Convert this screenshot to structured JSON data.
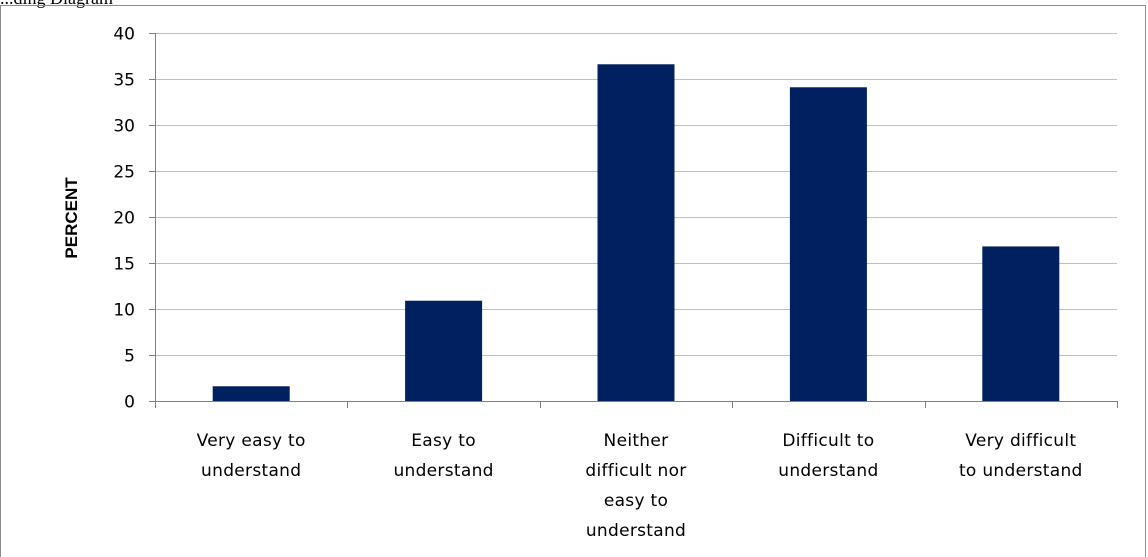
{
  "caption": "...ding Diagram",
  "chart_data": {
    "type": "bar",
    "title": "",
    "xlabel": "",
    "ylabel": "PERCENT",
    "ylim": [
      0,
      40
    ],
    "yticks": [
      0,
      5,
      10,
      15,
      20,
      25,
      30,
      35,
      40
    ],
    "grid": true,
    "legend": "none",
    "categories": [
      [
        "Very easy to",
        "understand"
      ],
      [
        "Easy to",
        "understand"
      ],
      [
        "Neither",
        "difficult nor",
        "easy to",
        "understand"
      ],
      [
        "Difficult to",
        "understand"
      ],
      [
        "Very difficult",
        "to understand"
      ]
    ],
    "values": [
      1.6,
      10.9,
      36.6,
      34.1,
      16.8
    ],
    "bar_color": "#002060"
  }
}
